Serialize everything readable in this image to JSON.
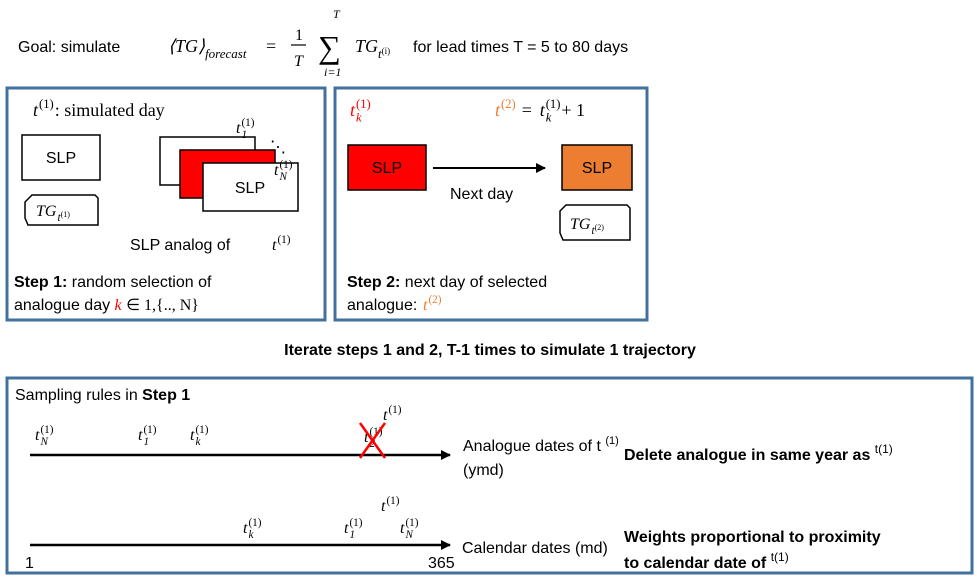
{
  "goal": {
    "prefix": "Goal: simulate",
    "suffix": "for lead times T = 5 to 80 days",
    "formula": {
      "lhs": "⟨TG⟩",
      "lhs_sub": "forecast",
      "eq": "=",
      "num": "1",
      "den": "T",
      "sum": "∑",
      "sum_top": "T",
      "sum_bottom": "i=1",
      "term": "TG",
      "term_sub": "t",
      "term_subsup": "(i)"
    }
  },
  "step1": {
    "simulated_day": {
      "base": "t",
      "sup": "(1)",
      "after": ": simulated day"
    },
    "slp": "SLP",
    "tg": {
      "base": "TG",
      "sub": "t",
      "subsup": "(1)"
    },
    "analog_slp": "SLP",
    "analog_first": {
      "base": "t",
      "sub": "1",
      "sup": "(1)"
    },
    "ellipsis": "⋱",
    "analog_last": {
      "base": "t",
      "sub": "N",
      "sup": "(1)"
    },
    "caption": "SLP analog of",
    "caption_date": {
      "base": "t",
      "sup": "(1)"
    },
    "heading": "Step 1:",
    "line1": " random selection of",
    "line2": "analogue day",
    "k": "k",
    "set": "∈  1,{.., N}"
  },
  "step2": {
    "selected": {
      "base": "t",
      "sub": "k",
      "sup": "(1)"
    },
    "next_lhs": {
      "base": "t",
      "sup": "(2)"
    },
    "next_eq": "=",
    "next_rhs": {
      "base": "t",
      "sub": "k",
      "sup": "(1)",
      "after": " + 1"
    },
    "slp_from": "SLP",
    "arrow_label": "Next day",
    "slp_to": "SLP",
    "tg": {
      "base": "TG",
      "sub": "t",
      "subsup": "(2)"
    },
    "heading": "Step 2:",
    "line1": " next day of selected",
    "line2": "analogue: ",
    "date": {
      "base": "t",
      "sup": "(2)"
    }
  },
  "iterate": "Iterate steps 1 and 2, T-1 times to simulate 1 trajectory",
  "rules": {
    "title": "Sampling rules in ",
    "title_bold": "Step 1",
    "axis1": {
      "dates": [
        {
          "base": "t",
          "sub": "N",
          "sup": "(1)"
        },
        {
          "base": "t",
          "sub": "1",
          "sup": "(1)"
        },
        {
          "base": "t",
          "sub": "k",
          "sup": "(1)"
        }
      ],
      "target": {
        "base": "t",
        "sup": "(1)"
      },
      "deleted": {
        "base": "t",
        "sub": "2",
        "sup": "(1)"
      },
      "label_line1": "Analogue dates of t ",
      "label_sup": "(1)",
      "label_line2": "(ymd)",
      "rule": "Delete analogue in same year as ",
      "rule_sup": "t(1)"
    },
    "axis2": {
      "start": "1",
      "end": "365",
      "dates": [
        {
          "base": "t",
          "sub": "k",
          "sup": "(1)"
        },
        {
          "base": "t",
          "sub": "1",
          "sup": "(1)"
        },
        {
          "base": "t",
          "sub": "N",
          "sup": "(1)"
        }
      ],
      "target": {
        "base": "t",
        "sup": "(1)"
      },
      "label": "Calendar dates (md)",
      "rule_line1": "Weights proportional to proximity",
      "rule_line2": "to calendar date of ",
      "rule_sup": "t(1)"
    }
  }
}
